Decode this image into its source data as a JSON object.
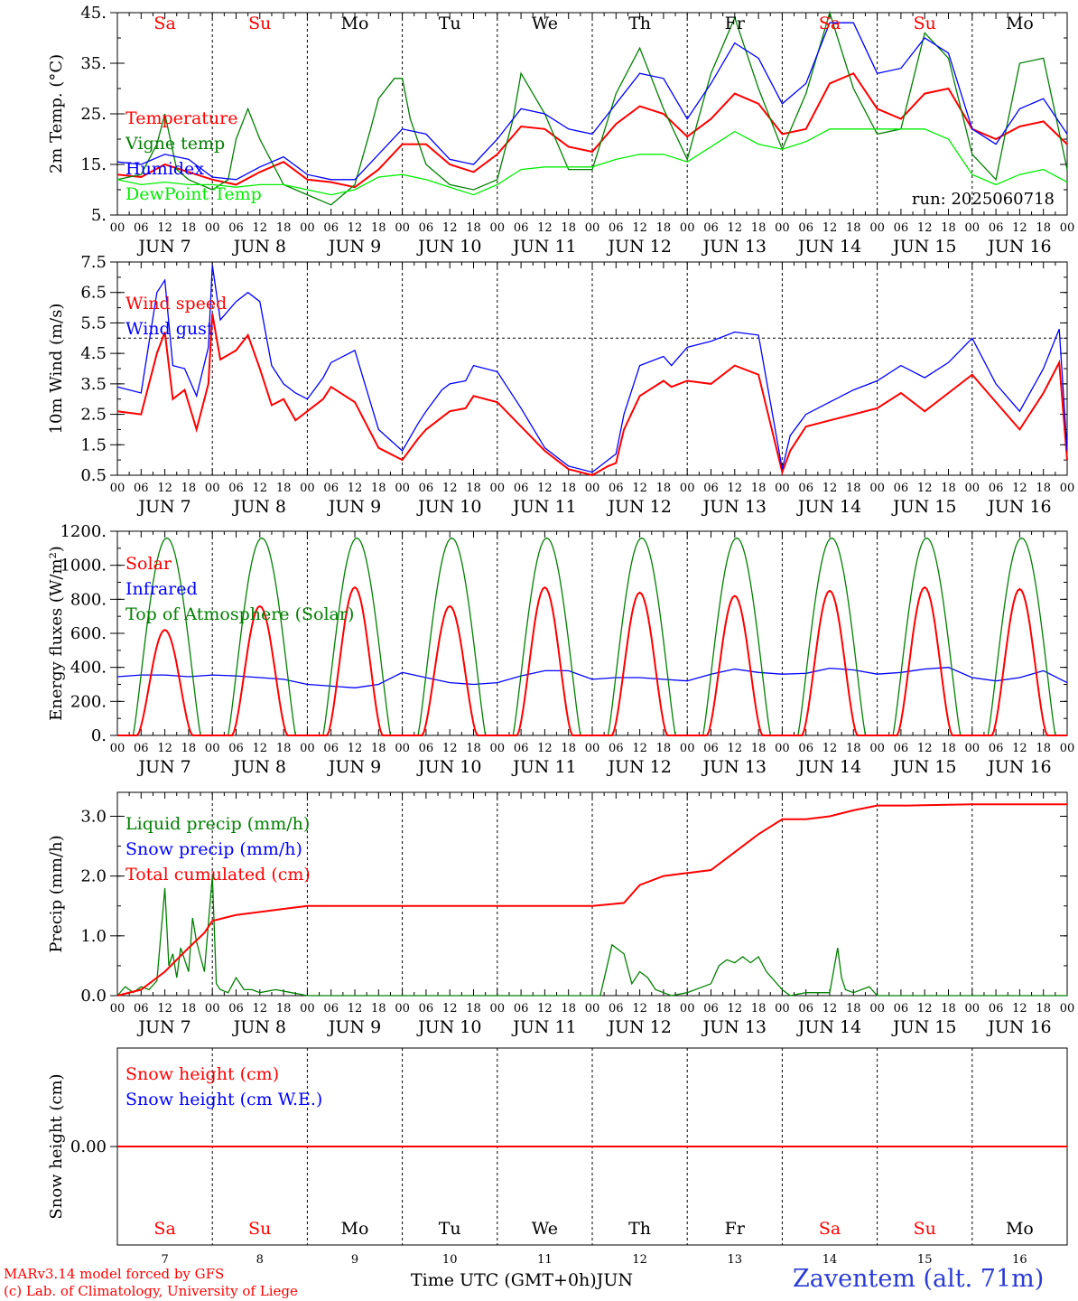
{
  "run_label": "run: 2025060718",
  "model_credit": "MARv3.14 model forced by GFS",
  "lab_credit": "(c) Lab. of Climatology, University of Liege",
  "x_axis_title": "Time UTC (GMT+0h)",
  "month_label": "JUN",
  "station_label": "Zaventem (alt. 71m)",
  "hour_ticks": [
    "00",
    "06",
    "12",
    "18"
  ],
  "final_hour_tick": "00",
  "days": [
    {
      "weekday": "Sa",
      "date": "JUN 7",
      "day_number": "7",
      "weekend": true
    },
    {
      "weekday": "Su",
      "date": "JUN 8",
      "day_number": "8",
      "weekend": true
    },
    {
      "weekday": "Mo",
      "date": "JUN 9",
      "day_number": "9",
      "weekend": false
    },
    {
      "weekday": "Tu",
      "date": "JUN 10",
      "day_number": "10",
      "weekend": false
    },
    {
      "weekday": "We",
      "date": "JUN 11",
      "day_number": "11",
      "weekend": false
    },
    {
      "weekday": "Th",
      "date": "JUN 12",
      "day_number": "12",
      "weekend": false
    },
    {
      "weekday": "Fr",
      "date": "JUN 13",
      "day_number": "13",
      "weekend": false
    },
    {
      "weekday": "Sa",
      "date": "JUN 14",
      "day_number": "14",
      "weekend": true
    },
    {
      "weekday": "Su",
      "date": "JUN 15",
      "day_number": "15",
      "weekend": true
    },
    {
      "weekday": "Mo",
      "date": "JUN 16",
      "day_number": "16",
      "weekend": false
    }
  ],
  "colors": {
    "red": "#ff0000",
    "blue": "#0000ff",
    "green": "#008000",
    "lightgreen": "#00ee00",
    "grid": "#000000",
    "weekend_text": "#ff0000"
  },
  "chart_data": [
    {
      "type": "line",
      "ylabel": "2m Temp. (°C)",
      "ylim": [
        5,
        45
      ],
      "yticks": [
        "45.",
        "35.",
        "25.",
        "15.",
        "5."
      ],
      "ytick_values": [
        45,
        35,
        25,
        15,
        5
      ],
      "x_range_hours": [
        0,
        240
      ],
      "show_weekdays": true,
      "series": [
        {
          "name": "Temperature",
          "color": "red",
          "x": [
            0,
            6,
            12,
            18,
            24,
            30,
            36,
            42,
            48,
            54,
            60,
            66,
            72,
            78,
            84,
            90,
            96,
            102,
            108,
            114,
            120,
            126,
            132,
            138,
            144,
            150,
            156,
            162,
            168,
            174,
            180,
            186,
            192,
            198,
            204,
            210,
            216,
            222,
            228,
            234,
            240
          ],
          "y": [
            13,
            12.5,
            15,
            13.5,
            12,
            11,
            13.5,
            15.5,
            12,
            11.5,
            10.5,
            14,
            19,
            19,
            15,
            13.5,
            17,
            22.5,
            22,
            18.5,
            17.5,
            23,
            26.5,
            25,
            20.5,
            24,
            29,
            27,
            21,
            22,
            31,
            33,
            26,
            24,
            29,
            30,
            22,
            20,
            22.5,
            23.5,
            19
          ]
        },
        {
          "name": "Vigne temp",
          "color": "green",
          "x": [
            0,
            6,
            10,
            12,
            15,
            18,
            24,
            28,
            30,
            33,
            36,
            42,
            48,
            54,
            60,
            64,
            66,
            70,
            72,
            74,
            78,
            84,
            90,
            96,
            100,
            102,
            108,
            114,
            120,
            126,
            132,
            138,
            144,
            150,
            156,
            162,
            168,
            174,
            180,
            186,
            192,
            198,
            204,
            210,
            216,
            222,
            228,
            234,
            240
          ],
          "y": [
            12,
            13,
            19,
            25,
            14,
            12,
            10,
            12,
            20,
            26,
            20,
            11,
            9,
            7,
            11,
            22,
            28,
            32,
            32,
            24,
            15,
            11,
            10,
            12,
            24,
            33,
            25,
            14,
            14,
            29,
            38,
            26,
            16,
            33,
            44,
            30,
            18,
            29,
            45,
            30,
            21,
            22,
            41,
            36,
            17,
            12,
            35,
            36,
            14
          ]
        },
        {
          "name": "Humidex",
          "color": "blue",
          "x": [
            0,
            6,
            12,
            18,
            24,
            30,
            36,
            42,
            48,
            54,
            60,
            66,
            72,
            78,
            84,
            90,
            96,
            102,
            108,
            114,
            120,
            126,
            132,
            138,
            144,
            150,
            156,
            162,
            168,
            174,
            180,
            186,
            192,
            198,
            204,
            210,
            216,
            222,
            228,
            234,
            240
          ],
          "y": [
            15.5,
            15,
            17,
            16,
            12.5,
            12,
            14.5,
            16.5,
            13,
            12,
            12,
            17,
            22,
            21,
            16,
            15,
            20,
            26,
            25,
            22,
            21,
            27,
            33,
            32,
            24,
            31,
            39,
            36,
            27,
            31,
            43,
            43,
            33,
            34,
            40,
            37,
            22,
            19,
            26,
            28,
            21
          ]
        },
        {
          "name": "DewPoint Temp",
          "color": "lightgreen",
          "x": [
            0,
            6,
            12,
            18,
            24,
            30,
            36,
            42,
            48,
            54,
            60,
            66,
            72,
            78,
            84,
            90,
            96,
            102,
            108,
            114,
            120,
            126,
            132,
            138,
            144,
            150,
            156,
            162,
            168,
            174,
            180,
            186,
            192,
            198,
            204,
            210,
            216,
            222,
            228,
            234,
            240
          ],
          "y": [
            12,
            11,
            11.5,
            11,
            11,
            10.5,
            11,
            11,
            10,
            9,
            10,
            12.5,
            13,
            12,
            10.5,
            9,
            11,
            14,
            14.5,
            14.5,
            14.5,
            16,
            17,
            17,
            15.5,
            18.5,
            21.5,
            19,
            18,
            19.5,
            22,
            22,
            22,
            22,
            22,
            20,
            13,
            11,
            13,
            14,
            11.5
          ]
        }
      ]
    },
    {
      "type": "line",
      "ylabel": "10m Wind (m/s)",
      "ylim": [
        0.5,
        7.5
      ],
      "yticks": [
        "7.5",
        "6.5",
        "5.5",
        "4.5",
        "3.5",
        "2.5",
        "1.5",
        "0.5"
      ],
      "ytick_values": [
        7.5,
        6.5,
        5.5,
        4.5,
        3.5,
        2.5,
        1.5,
        0.5
      ],
      "reference_line": 5,
      "x_range_hours": [
        0,
        240
      ],
      "series": [
        {
          "name": "Wind speed",
          "color": "red",
          "x": [
            0,
            6,
            10,
            12,
            14,
            17,
            20,
            23,
            24,
            26,
            30,
            33,
            36,
            39,
            42,
            45,
            48,
            52,
            54,
            60,
            66,
            72,
            76,
            78,
            82,
            84,
            88,
            90,
            96,
            102,
            108,
            114,
            120,
            124,
            126,
            128,
            132,
            138,
            140,
            144,
            150,
            156,
            162,
            168,
            170,
            174,
            180,
            186,
            192,
            198,
            204,
            210,
            216,
            222,
            228,
            234,
            238,
            240
          ],
          "y": [
            2.6,
            2.5,
            4.5,
            5.2,
            3,
            3.3,
            2,
            3.5,
            5.8,
            4.3,
            4.6,
            5.1,
            4,
            2.8,
            3,
            2.3,
            2.6,
            3,
            3.4,
            2.9,
            1.4,
            1,
            1.7,
            2,
            2.4,
            2.6,
            2.7,
            3.1,
            2.9,
            2.1,
            1.3,
            0.7,
            0.5,
            0.8,
            0.9,
            2,
            3.1,
            3.6,
            3.4,
            3.6,
            3.5,
            4.1,
            3.8,
            0.6,
            1.3,
            2.1,
            2.3,
            2.5,
            2.7,
            3.2,
            2.6,
            3.2,
            3.8,
            2.9,
            2,
            3.2,
            4.2,
            1
          ]
        },
        {
          "name": "Wind gust",
          "color": "blue",
          "x": [
            0,
            6,
            10,
            12,
            14,
            17,
            20,
            23,
            24,
            26,
            30,
            33,
            36,
            39,
            42,
            45,
            48,
            52,
            54,
            60,
            66,
            72,
            76,
            78,
            82,
            84,
            88,
            90,
            96,
            102,
            108,
            114,
            120,
            124,
            126,
            128,
            132,
            138,
            140,
            144,
            150,
            156,
            162,
            168,
            170,
            174,
            180,
            186,
            192,
            198,
            204,
            210,
            216,
            222,
            228,
            234,
            238,
            240
          ],
          "y": [
            3.4,
            3.2,
            6.5,
            6.9,
            4.1,
            4,
            3.1,
            4.7,
            7.4,
            5.6,
            6.2,
            6.5,
            6.2,
            4.1,
            3.5,
            3.2,
            3,
            3.7,
            4.2,
            4.6,
            2,
            1.3,
            2.2,
            2.6,
            3.3,
            3.5,
            3.6,
            4.1,
            3.9,
            2.7,
            1.4,
            0.8,
            0.6,
            1,
            1.2,
            2.5,
            4.1,
            4.4,
            4.1,
            4.7,
            4.9,
            5.2,
            5.1,
            0.7,
            1.8,
            2.5,
            2.9,
            3.3,
            3.6,
            4.1,
            3.7,
            4.2,
            5,
            3.5,
            2.6,
            4,
            5.3,
            1.3
          ]
        }
      ]
    },
    {
      "type": "line",
      "ylabel": "Energy fluxes (W/m²)",
      "ylim": [
        0,
        1200
      ],
      "yticks": [
        "1200.",
        "1000.",
        "800.",
        "600.",
        "400.",
        "200.",
        "0."
      ],
      "ytick_values": [
        1200,
        1000,
        800,
        600,
        400,
        200,
        0
      ],
      "x_range_hours": [
        0,
        240
      ],
      "daily_peaks": {
        "top_of_atmosphere": 1160,
        "solar": [
          620,
          760,
          870,
          760,
          870,
          840,
          820,
          850,
          870,
          860
        ],
        "solar_daylight_hours": [
          5,
          19
        ]
      },
      "series": [
        {
          "name": "Solar",
          "color": "red",
          "values_note_hidden": true
        },
        {
          "name": "Infrared",
          "color": "blue",
          "x": [
            0,
            6,
            12,
            18,
            24,
            30,
            36,
            42,
            48,
            54,
            60,
            66,
            72,
            78,
            84,
            90,
            96,
            102,
            108,
            114,
            120,
            126,
            132,
            138,
            144,
            150,
            156,
            162,
            168,
            174,
            180,
            186,
            192,
            198,
            204,
            210,
            216,
            222,
            228,
            234,
            240
          ],
          "y": [
            345,
            355,
            355,
            345,
            355,
            350,
            340,
            330,
            300,
            290,
            280,
            300,
            370,
            340,
            310,
            300,
            310,
            350,
            380,
            380,
            330,
            340,
            340,
            330,
            320,
            360,
            390,
            370,
            360,
            365,
            395,
            385,
            360,
            370,
            390,
            400,
            340,
            320,
            340,
            380,
            310
          ]
        },
        {
          "name": "Top of Atmosphere (Solar)",
          "color": "green"
        }
      ]
    },
    {
      "type": "line",
      "ylabel": "Precip (mm/h)",
      "ylim": [
        0,
        3.4
      ],
      "yticks": [
        "3.0",
        "2.0",
        "1.0",
        "0.0"
      ],
      "ytick_values": [
        3,
        2,
        1,
        0
      ],
      "x_range_hours": [
        0,
        240
      ],
      "series": [
        {
          "name": "Liquid precip (mm/h)",
          "color": "green",
          "x": [
            0,
            2,
            4,
            6,
            8,
            10,
            12,
            13,
            14,
            15,
            16,
            18,
            19,
            20,
            22,
            24,
            25,
            26,
            28,
            30,
            32,
            34,
            36,
            40,
            44,
            48,
            50,
            120,
            122,
            125,
            128,
            130,
            132,
            134,
            136,
            138,
            140,
            144,
            150,
            152,
            154,
            156,
            158,
            160,
            162,
            164,
            168,
            170,
            174,
            180,
            182,
            183,
            184,
            186,
            190,
            192,
            240
          ],
          "y": [
            0,
            0.15,
            0.05,
            0.15,
            0.1,
            0.25,
            1.8,
            0.5,
            0.7,
            0.3,
            0.8,
            0.4,
            1.3,
            0.9,
            0.4,
            2,
            0.2,
            0.1,
            0.05,
            0.3,
            0.1,
            0.1,
            0.05,
            0.1,
            0.05,
            0,
            0,
            0,
            0,
            0.85,
            0.7,
            0.2,
            0.4,
            0.3,
            0.1,
            0.05,
            0,
            0.05,
            0.2,
            0.5,
            0.6,
            0.55,
            0.65,
            0.55,
            0.65,
            0.4,
            0.1,
            0,
            0.05,
            0.05,
            0.8,
            0.3,
            0.1,
            0.05,
            0.15,
            0,
            0
          ]
        },
        {
          "name": "Snow precip (mm/h)",
          "color": "blue"
        },
        {
          "name": "Total cumulated (cm)",
          "color": "red",
          "x": [
            0,
            6,
            12,
            18,
            22,
            24,
            30,
            36,
            42,
            48,
            56,
            72,
            96,
            120,
            128,
            132,
            138,
            144,
            150,
            156,
            162,
            168,
            174,
            180,
            186,
            192,
            200,
            216,
            240
          ],
          "y": [
            0,
            0.1,
            0.4,
            0.8,
            1.05,
            1.25,
            1.35,
            1.4,
            1.45,
            1.5,
            1.5,
            1.5,
            1.5,
            1.5,
            1.55,
            1.85,
            2.0,
            2.05,
            2.1,
            2.4,
            2.7,
            2.95,
            2.95,
            3.0,
            3.1,
            3.18,
            3.18,
            3.2,
            3.2
          ]
        }
      ]
    },
    {
      "type": "line",
      "ylabel": "Snow height (cm)",
      "ylim": [
        -1,
        1
      ],
      "yticks": [
        "0.00"
      ],
      "ytick_values": [
        0
      ],
      "x_range_hours": [
        0,
        240
      ],
      "series": [
        {
          "name": "Snow height (cm)",
          "color": "red",
          "x": [
            0,
            240
          ],
          "y": [
            0,
            0
          ]
        },
        {
          "name": "Snow height (cm W.E.)",
          "color": "blue"
        }
      ]
    }
  ]
}
